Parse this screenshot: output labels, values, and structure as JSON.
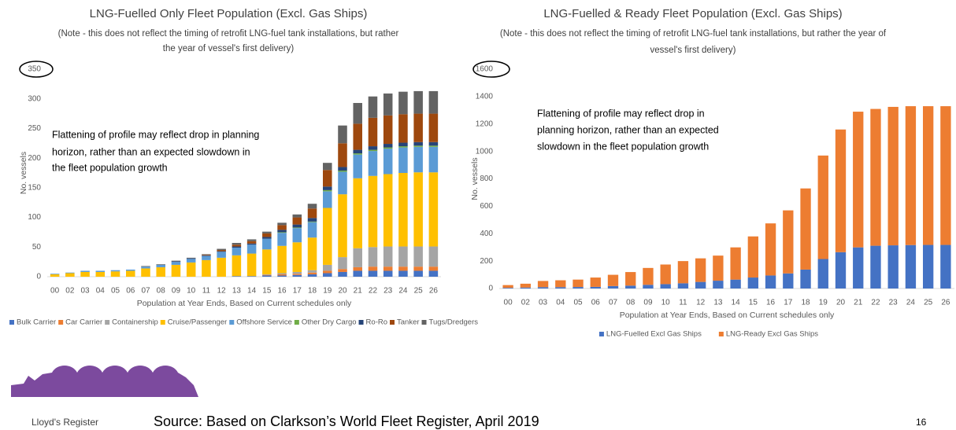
{
  "chart_data": [
    {
      "type": "bar",
      "stacked": true,
      "title": "LNG-Fuelled Only Fleet Population (Excl. Gas Ships)",
      "subtitle": [
        "(Note - this does not reflect the timing of retrofit LNG-fuel tank installations, but rather",
        "the year of vessel's first delivery)"
      ],
      "annotation": [
        "Flattening of profile may reflect drop in planning",
        "horizon, rather than an expected slowdown in",
        "the fleet population growth"
      ],
      "x_label": "Population at Year Ends, Based on Current schedules only",
      "y_label": "No. vessels",
      "categories": [
        "00",
        "02",
        "03",
        "04",
        "05",
        "06",
        "07",
        "08",
        "09",
        "10",
        "11",
        "12",
        "13",
        "14",
        "15",
        "16",
        "17",
        "18",
        "19",
        "20",
        "21",
        "22",
        "23",
        "24",
        "25",
        "26"
      ],
      "series": [
        {
          "name": "Bulk Carrier",
          "color": "#4472c4",
          "values": [
            0,
            0,
            0,
            0,
            0,
            0,
            0,
            0,
            0,
            0,
            0,
            0,
            1,
            1,
            2,
            2,
            3,
            4,
            6,
            8,
            10,
            10,
            10,
            10,
            10,
            10
          ]
        },
        {
          "name": "Car Carrier",
          "color": "#ed7d31",
          "values": [
            0,
            0,
            0,
            0,
            0,
            0,
            0,
            0,
            0,
            0,
            0,
            0,
            0,
            0,
            1,
            2,
            2,
            3,
            4,
            5,
            6,
            7,
            7,
            7,
            7,
            7
          ]
        },
        {
          "name": "Containership",
          "color": "#a5a5a5",
          "values": [
            0,
            0,
            0,
            0,
            0,
            0,
            0,
            0,
            0,
            0,
            0,
            0,
            0,
            0,
            1,
            2,
            3,
            4,
            10,
            20,
            32,
            33,
            34,
            34,
            34,
            34
          ]
        },
        {
          "name": "Cruise/Passenger",
          "color": "#ffc000",
          "values": [
            4,
            6,
            8,
            8,
            9,
            10,
            14,
            16,
            20,
            24,
            28,
            32,
            35,
            38,
            42,
            46,
            50,
            55,
            96,
            106,
            118,
            120,
            122,
            124,
            125,
            125
          ]
        },
        {
          "name": "Offshore Service",
          "color": "#5b9bd5",
          "values": [
            1,
            1,
            2,
            2,
            2,
            2,
            3,
            4,
            5,
            6,
            7,
            10,
            13,
            15,
            18,
            22,
            24,
            26,
            28,
            38,
            40,
            42,
            43,
            43,
            43,
            43
          ]
        },
        {
          "name": "Other Dry Cargo",
          "color": "#70ad47",
          "values": [
            0,
            0,
            0,
            0,
            0,
            0,
            0,
            0,
            0,
            0,
            0,
            0,
            0,
            0,
            0,
            1,
            1,
            1,
            2,
            2,
            2,
            2,
            2,
            2,
            2,
            2
          ]
        },
        {
          "name": "Ro-Ro",
          "color": "#264478",
          "values": [
            0,
            0,
            0,
            0,
            0,
            0,
            0,
            0,
            1,
            1,
            1,
            1,
            2,
            2,
            3,
            4,
            5,
            6,
            6,
            6,
            6,
            6,
            6,
            6,
            6,
            6
          ]
        },
        {
          "name": "Tanker",
          "color": "#9e480e",
          "values": [
            0,
            0,
            0,
            0,
            0,
            0,
            0,
            0,
            0,
            0,
            1,
            2,
            3,
            4,
            6,
            8,
            12,
            16,
            28,
            40,
            44,
            48,
            48,
            48,
            48,
            48
          ]
        },
        {
          "name": "Tugs/Dredgers",
          "color": "#636363",
          "values": [
            0,
            0,
            0,
            0,
            0,
            0,
            1,
            1,
            1,
            1,
            1,
            2,
            3,
            3,
            3,
            4,
            5,
            8,
            12,
            30,
            35,
            36,
            37,
            38,
            38,
            38
          ]
        }
      ],
      "ylim": [
        0,
        350
      ],
      "yticks": [
        0,
        50,
        100,
        150,
        200,
        250,
        300,
        350
      ]
    },
    {
      "type": "bar",
      "stacked": true,
      "title": "LNG-Fuelled & Ready Fleet Population (Excl. Gas Ships)",
      "subtitle": [
        "(Note - this does not reflect the timing of retrofit LNG-fuel tank installations, but rather the year of",
        "vessel's first delivery)"
      ],
      "annotation": [
        "Flattening of profile may reflect drop in",
        "planning horizon, rather than an expected",
        "slowdown in the fleet population growth"
      ],
      "x_label": "Population at Year Ends, Based on Current schedules only",
      "y_label": "No. vessels",
      "categories": [
        "00",
        "02",
        "03",
        "04",
        "05",
        "06",
        "07",
        "08",
        "09",
        "10",
        "11",
        "12",
        "13",
        "14",
        "15",
        "16",
        "17",
        "18",
        "19",
        "20",
        "21",
        "22",
        "23",
        "24",
        "25",
        "26"
      ],
      "series": [
        {
          "name": "LNG-Fuelled Excl Gas Ships",
          "color": "#4472c4",
          "values": [
            5,
            7,
            10,
            10,
            11,
            12,
            18,
            21,
            27,
            32,
            38,
            48,
            57,
            65,
            80,
            95,
            110,
            138,
            215,
            265,
            300,
            312,
            315,
            317,
            318,
            318
          ]
        },
        {
          "name": "LNG-Ready Excl Gas Ships",
          "color": "#ed7d31",
          "values": [
            20,
            28,
            45,
            50,
            54,
            68,
            82,
            99,
            123,
            143,
            162,
            172,
            183,
            235,
            300,
            380,
            460,
            592,
            755,
            895,
            990,
            998,
            1010,
            1013,
            1012,
            1012
          ]
        }
      ],
      "ylim": [
        0,
        1600
      ],
      "yticks": [
        0,
        200,
        400,
        600,
        800,
        1000,
        1200,
        1400,
        1600
      ]
    }
  ],
  "footer": {
    "brand": "Lloyd's Register",
    "source": "Source:  Based on Clarkson’s World Fleet Register, April  2019",
    "page": "16"
  }
}
